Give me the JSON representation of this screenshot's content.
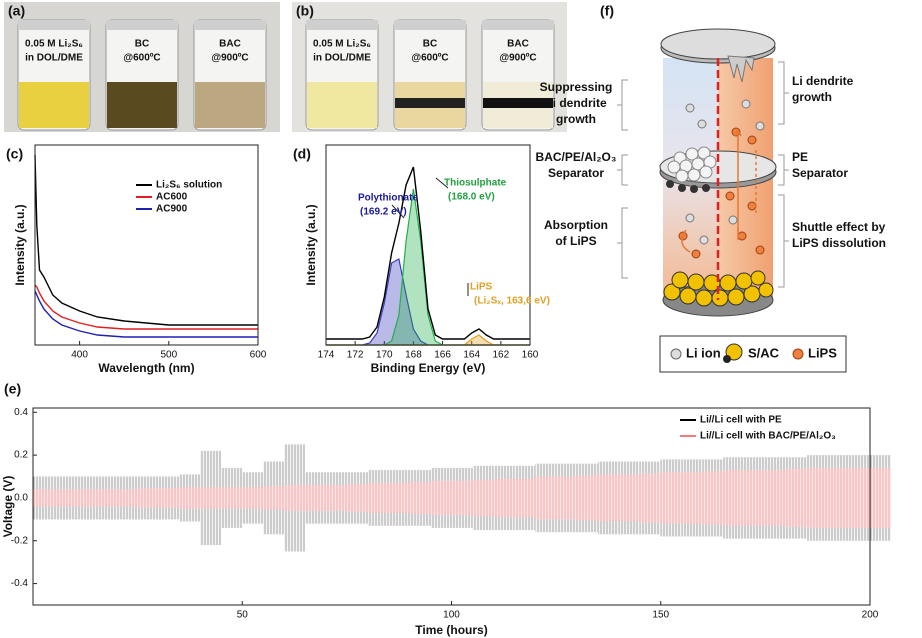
{
  "chart_data": [
    {
      "type": "line",
      "label": "(c)",
      "xlabel": "Wavelength (nm)",
      "ylabel": "Intensity (a.u.)",
      "x": [
        350,
        352,
        355,
        360,
        370,
        380,
        400,
        420,
        450,
        500,
        550,
        600
      ],
      "xlim": [
        350,
        600
      ],
      "xticks": [
        400,
        500,
        600
      ],
      "ylim": [
        0,
        1
      ],
      "legend": "upper right",
      "series": [
        {
          "name": "Li₂S₆ solution",
          "color": "#000000",
          "values": [
            0.95,
            0.6,
            0.375,
            0.34,
            0.25,
            0.21,
            0.17,
            0.14,
            0.12,
            0.1,
            0.1,
            0.1
          ]
        },
        {
          "name": "AC600",
          "color": "#e02020",
          "values": [
            0.3,
            0.29,
            0.26,
            0.22,
            0.17,
            0.14,
            0.11,
            0.09,
            0.08,
            0.08,
            0.08,
            0.08
          ]
        },
        {
          "name": "AC900",
          "color": "#2020b0",
          "values": [
            0.27,
            0.25,
            0.22,
            0.18,
            0.13,
            0.1,
            0.07,
            0.05,
            0.04,
            0.04,
            0.04,
            0.04
          ]
        }
      ]
    },
    {
      "type": "line",
      "label": "(d)",
      "xlabel": "Binding Energy (eV)",
      "ylabel": "Intensity (a.u.)",
      "x": [
        174,
        173.5,
        173,
        172.5,
        172,
        171.5,
        171,
        170.5,
        170,
        169.5,
        169,
        168.5,
        168,
        167.5,
        167,
        166.5,
        166,
        165.5,
        165,
        164.5,
        164,
        163.5,
        163,
        162.5,
        162,
        161.5,
        161,
        160.5,
        160
      ],
      "xlim": [
        174,
        160
      ],
      "xticks": [
        174,
        172,
        170,
        168,
        166,
        164,
        162,
        160
      ],
      "ylim": [
        0,
        1
      ],
      "series": [
        {
          "color": "#3a3ac0",
          "area": true,
          "values": [
            0,
            0,
            0,
            0,
            0,
            0,
            0.01,
            0.06,
            0.21,
            0.41,
            0.43,
            0.25,
            0.08,
            0.02,
            0,
            0,
            0,
            0,
            0,
            0,
            0,
            0,
            0,
            0,
            0,
            0,
            0,
            0,
            0
          ]
        },
        {
          "color": "#22b04a",
          "area": true,
          "values": [
            0,
            0,
            0,
            0,
            0,
            0,
            0,
            0,
            0,
            0.02,
            0.15,
            0.52,
            0.78,
            0.52,
            0.15,
            0.02,
            0,
            0,
            0,
            0,
            0,
            0,
            0,
            0,
            0,
            0,
            0,
            0,
            0
          ]
        },
        {
          "color": "#e0a020",
          "area": true,
          "values": [
            0,
            0,
            0,
            0,
            0,
            0,
            0,
            0,
            0,
            0,
            0,
            0,
            0,
            0,
            0,
            0,
            0,
            0,
            0,
            0,
            0.03,
            0.05,
            0.02,
            0,
            0,
            0,
            0,
            0,
            0
          ]
        },
        {
          "color": "#000000",
          "area": false,
          "values": [
            0.03,
            0.03,
            0.03,
            0.03,
            0.03,
            0.03,
            0.04,
            0.09,
            0.24,
            0.46,
            0.61,
            0.8,
            0.89,
            0.57,
            0.18,
            0.05,
            0.03,
            0.03,
            0.03,
            0.03,
            0.06,
            0.08,
            0.05,
            0.03,
            0.03,
            0.03,
            0.03,
            0.03,
            0.03
          ]
        }
      ],
      "annotations": [
        {
          "text": "Polythionate",
          "color": "#1a1a9c"
        },
        {
          "text": "(169.2 eV)",
          "color": "#1a1a9c"
        },
        {
          "text": "Thiosulphate",
          "color": "#22a040"
        },
        {
          "text": "(168.0 eV)",
          "color": "#22a040"
        },
        {
          "text": "LiPS",
          "color": "#e0a020"
        },
        {
          "text": "(Li₂Sₓ, 163,6 eV)",
          "color": "#e0a020"
        }
      ]
    },
    {
      "type": "range",
      "label": "(e)",
      "xlabel": "Time (hours)",
      "ylabel": "Voltage (V)",
      "x": [
        0,
        5,
        10,
        15,
        20,
        25,
        30,
        35,
        40,
        45,
        50,
        55,
        60,
        65,
        70,
        75,
        80,
        85,
        90,
        95,
        100,
        105,
        110,
        115,
        120,
        125,
        130,
        135,
        140,
        145,
        150,
        155,
        160,
        165,
        170,
        175,
        180,
        185,
        190,
        195,
        200
      ],
      "xlim": [
        0,
        200
      ],
      "xticks": [
        50,
        100,
        150,
        200
      ],
      "ylim": [
        -0.5,
        0.42
      ],
      "yticks": [
        0.4,
        0.2,
        {
          "value": 0,
          "label": "0.0"
        },
        -0.2,
        -0.4
      ],
      "legend": "upper right",
      "series": [
        {
          "name": "Li//Li cell with PE",
          "color": "#000000",
          "values": [
            0.1,
            0.1,
            0.1,
            0.1,
            0.1,
            0.1,
            0.1,
            0.11,
            0.22,
            0.14,
            0.12,
            0.17,
            0.25,
            0.12,
            0.12,
            0.12,
            0.13,
            0.13,
            0.13,
            0.14,
            0.14,
            0.15,
            0.15,
            0.15,
            0.16,
            0.16,
            0.16,
            0.17,
            0.17,
            0.17,
            0.18,
            0.18,
            0.18,
            0.19,
            0.19,
            0.19,
            0.19,
            0.2,
            0.2,
            0.2,
            0.2
          ]
        },
        {
          "name": "Li//Li cell with BAC/PE/Al₂O₃",
          "color": "#f08080",
          "values": [
            0.04,
            0.04,
            0.04,
            0.04,
            0.04,
            0.045,
            0.045,
            0.05,
            0.05,
            0.05,
            0.05,
            0.055,
            0.06,
            0.06,
            0.06,
            0.065,
            0.07,
            0.07,
            0.075,
            0.08,
            0.08,
            0.085,
            0.09,
            0.09,
            0.1,
            0.1,
            0.105,
            0.11,
            0.11,
            0.115,
            0.12,
            0.12,
            0.125,
            0.13,
            0.13,
            0.13,
            0.135,
            0.14,
            0.14,
            0.14,
            0.14
          ]
        }
      ]
    }
  ],
  "photos": [
    {
      "label": "(a)",
      "vials": [
        [
          "0.05 M Li₂S₆",
          "in DOL/DME"
        ],
        [
          "BC",
          "@600ºC"
        ],
        [
          "BAC",
          "@900ºC"
        ]
      ]
    },
    {
      "label": "(b)",
      "vials": [
        [
          "0.05 M Li₂S₆",
          "in DOL/DME"
        ],
        [
          "BC",
          "@600ºC"
        ],
        [
          "BAC",
          "@900ºC"
        ]
      ]
    }
  ],
  "diagram": {
    "label": "(f)",
    "left": [
      [
        "Suppressing",
        "Li dendrite",
        "growth"
      ],
      [
        "BAC/PE/Al₂O₃",
        "Separator"
      ],
      [
        "Absorption",
        "of LiPS"
      ]
    ],
    "right": [
      [
        "Li dendrite",
        "growth"
      ],
      [
        "PE",
        "Separator"
      ],
      [
        "Shuttle effect by",
        "LiPS dissolution"
      ]
    ],
    "legend": [
      "Li ion",
      "S/AC",
      "LiPS"
    ]
  }
}
